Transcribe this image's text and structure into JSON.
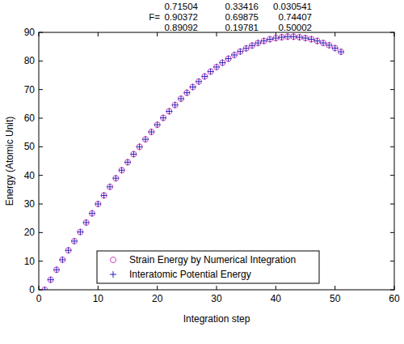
{
  "chart_data": {
    "type": "scatter",
    "annotation": {
      "text": "F=",
      "matrix": [
        [
          0.71504,
          0.33416,
          0.030541
        ],
        [
          0.90372,
          0.69875,
          0.74407
        ],
        [
          0.89092,
          0.19781,
          0.50002
        ]
      ]
    },
    "x_label": "Integration step",
    "y_label": "Energy (Atomic Unit)",
    "x": [
      1,
      2,
      3,
      4,
      5,
      6,
      7,
      8,
      9,
      10,
      11,
      12,
      13,
      14,
      15,
      16,
      17,
      18,
      19,
      20,
      21,
      22,
      23,
      24,
      25,
      26,
      27,
      28,
      29,
      30,
      31,
      32,
      33,
      34,
      35,
      36,
      37,
      38,
      39,
      40,
      41,
      42,
      43,
      44,
      45,
      46,
      47,
      48,
      49,
      50,
      51
    ],
    "series": [
      {
        "name": "Strain Energy by Numerical Integration",
        "color": "#cc44bb",
        "marker": "circle",
        "values": [
          0,
          3.5,
          7,
          10.5,
          13.8,
          17,
          20.2,
          23.5,
          26.7,
          30,
          33,
          36,
          39,
          41.8,
          44.6,
          47.4,
          50,
          52.6,
          55.2,
          57.7,
          60.1,
          62.4,
          64.6,
          66.8,
          68.9,
          70.9,
          72.8,
          74.6,
          76.3,
          77.9,
          79.4,
          80.8,
          82.1,
          83.3,
          84.4,
          85.4,
          86.3,
          87,
          87.6,
          88,
          88.3,
          88.5,
          88.5,
          88.3,
          88,
          87.6,
          87,
          86.3,
          85.5,
          84.5,
          83.2
        ]
      },
      {
        "name": "Interatomic Potential Energy",
        "color": "#2222bb",
        "marker": "plus",
        "values": [
          0,
          3.5,
          7,
          10.5,
          13.8,
          17,
          20.2,
          23.5,
          26.7,
          30,
          33,
          36,
          39,
          41.8,
          44.6,
          47.4,
          50,
          52.6,
          55.2,
          57.7,
          60.1,
          62.4,
          64.6,
          66.8,
          68.9,
          70.9,
          72.8,
          74.6,
          76.3,
          77.9,
          79.4,
          80.8,
          82.1,
          83.3,
          84.4,
          85.4,
          86.3,
          87,
          87.6,
          88,
          88.3,
          88.5,
          88.5,
          88.3,
          88,
          87.6,
          87,
          86.3,
          85.5,
          84.5,
          83.2
        ]
      }
    ],
    "xlim": [
      0,
      60
    ],
    "xticks": [
      0,
      10,
      20,
      30,
      40,
      50,
      60
    ],
    "ylim": [
      0,
      90
    ],
    "yticks": [
      0,
      10,
      20,
      30,
      40,
      50,
      60,
      70,
      80,
      90
    ],
    "legend": "bottom"
  }
}
